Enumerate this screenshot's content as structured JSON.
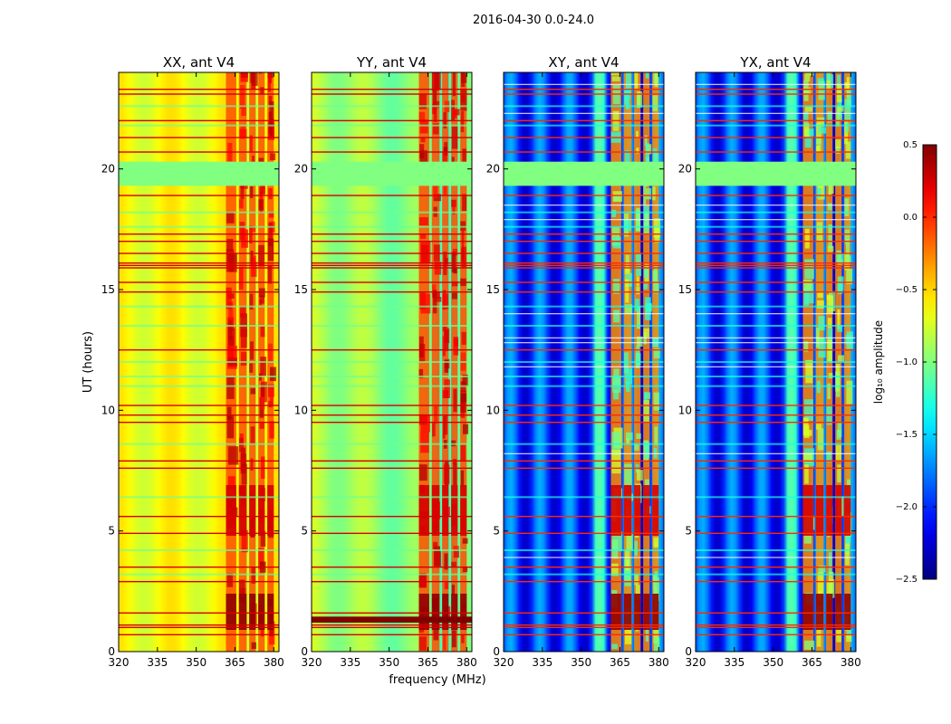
{
  "figure": {
    "suptitle": "2016-04-30 0.0-24.0"
  },
  "chart_data": {
    "type": "heatmap",
    "suptitle": "2016-04-30 0.0-24.0",
    "xlabel": "frequency (MHz)",
    "ylabel": "UT (hours)",
    "xlim": [
      320,
      382
    ],
    "ylim": [
      0,
      24
    ],
    "x_ticks": [
      320,
      335,
      350,
      365,
      380
    ],
    "y_ticks": [
      0,
      5,
      10,
      15,
      20
    ],
    "panels": [
      {
        "title": "XX, ant V4",
        "polarization": "XX"
      },
      {
        "title": "YY, ant V4",
        "polarization": "YY"
      },
      {
        "title": "XY, ant V4",
        "polarization": "XY"
      },
      {
        "title": "YX, ant V4",
        "polarization": "YX"
      }
    ],
    "colorbar": {
      "label": "log₁₀ amplitude",
      "range": [
        -2.5,
        0.5
      ],
      "ticks": [
        {
          "value": 0.5,
          "label": "0.5"
        },
        {
          "value": 0.0,
          "label": "0.0"
        },
        {
          "value": -0.5,
          "label": "−0.5"
        },
        {
          "value": -1.0,
          "label": "−1.0"
        },
        {
          "value": -1.5,
          "label": "−1.5"
        },
        {
          "value": -2.0,
          "label": "−2.0"
        },
        {
          "value": -2.5,
          "label": "−2.5"
        }
      ],
      "colormap": "jet"
    },
    "flagged_ut_range": [
      19.3,
      20.3
    ],
    "rfi_band_mhz": [
      361,
      380
    ],
    "strong_rfi_ut": [
      [
        4.8,
        6.9
      ],
      [
        0.9,
        2.4
      ]
    ]
  }
}
